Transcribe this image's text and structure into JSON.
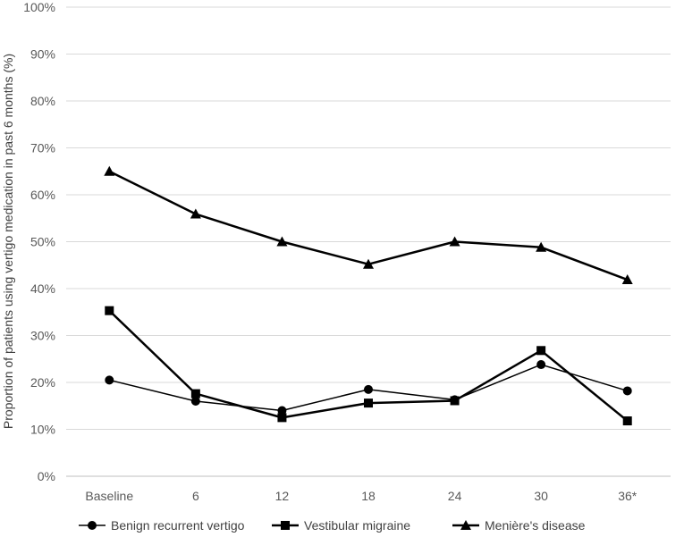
{
  "chart_data": {
    "type": "line",
    "title": "",
    "xlabel": "",
    "ylabel": "Proportion of patients using vertigo medication in past 6 months (%)",
    "categories": [
      "Baseline",
      "6",
      "12",
      "18",
      "24",
      "30",
      "36*"
    ],
    "ylim": [
      0,
      100
    ],
    "yticks": [
      "0%",
      "10%",
      "20%",
      "30%",
      "40%",
      "50%",
      "60%",
      "70%",
      "80%",
      "90%",
      "100%"
    ],
    "grid": "horizontal",
    "legend_position": "bottom",
    "series": [
      {
        "name": "Benign recurrent vertigo",
        "marker": "circle",
        "stroke_width": 1.5,
        "color": "#000000",
        "values": [
          20.5,
          16.0,
          14.0,
          18.5,
          16.3,
          23.8,
          18.2
        ]
      },
      {
        "name": "Vestibular migraine",
        "marker": "square",
        "stroke_width": 2.5,
        "color": "#000000",
        "values": [
          35.3,
          17.6,
          12.5,
          15.6,
          16.1,
          26.8,
          11.8
        ]
      },
      {
        "name": "Menière's disease",
        "marker": "triangle",
        "stroke_width": 2.5,
        "color": "#000000",
        "values": [
          65.0,
          55.9,
          50.0,
          45.2,
          50.0,
          48.8,
          41.9
        ]
      }
    ]
  },
  "colors": {
    "grid": "#d9d9d9",
    "axis": "#bfbfbf",
    "series": "#000000"
  }
}
